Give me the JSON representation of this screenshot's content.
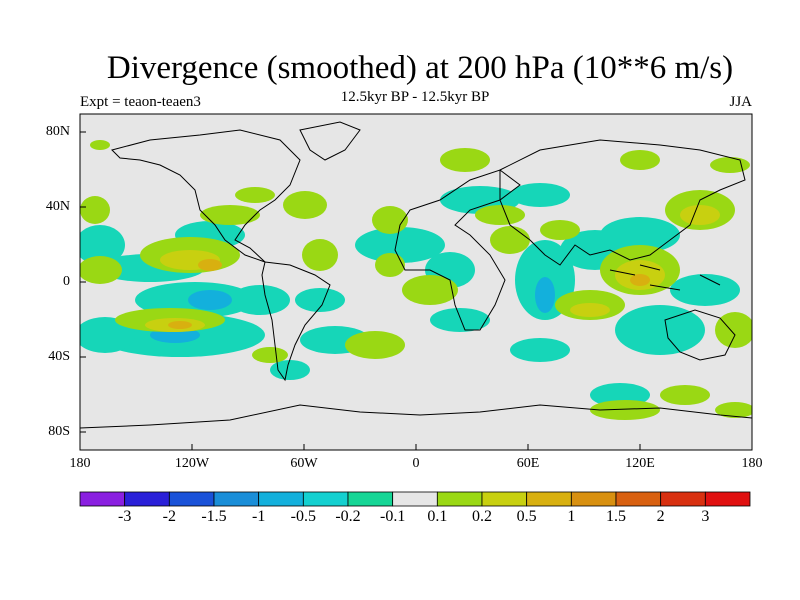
{
  "title": "Divergence (smoothed) at 200 hPa (10**6 m/s)",
  "subtitle": "12.5kyr BP - 12.5kyr BP",
  "experiment": "Expt = teaon-teaen3",
  "season": "JJA",
  "axes": {
    "lat_labels": [
      "80N",
      "40N",
      "0",
      "40S",
      "80S"
    ],
    "lon_labels": [
      "180",
      "120W",
      "60W",
      "0",
      "60E",
      "120E",
      "180"
    ]
  },
  "colorbar": {
    "labels": [
      "-3",
      "-2",
      "-1.5",
      "-1",
      "-0.5",
      "-0.2",
      "-0.1",
      "0.1",
      "0.2",
      "0.5",
      "1",
      "1.5",
      "2",
      "3"
    ],
    "colors": [
      "#8a1fe0",
      "#2a20d8",
      "#1a52d8",
      "#1a8ed8",
      "#13b0dc",
      "#14d0d0",
      "#16d696",
      "#e6e6e6",
      "#9ad814",
      "#c8d010",
      "#d8b010",
      "#d89010",
      "#d86010",
      "#d83010",
      "#e01010"
    ]
  },
  "colors": {
    "land_bg": "#e6e6e6",
    "coast": "#000000"
  }
}
